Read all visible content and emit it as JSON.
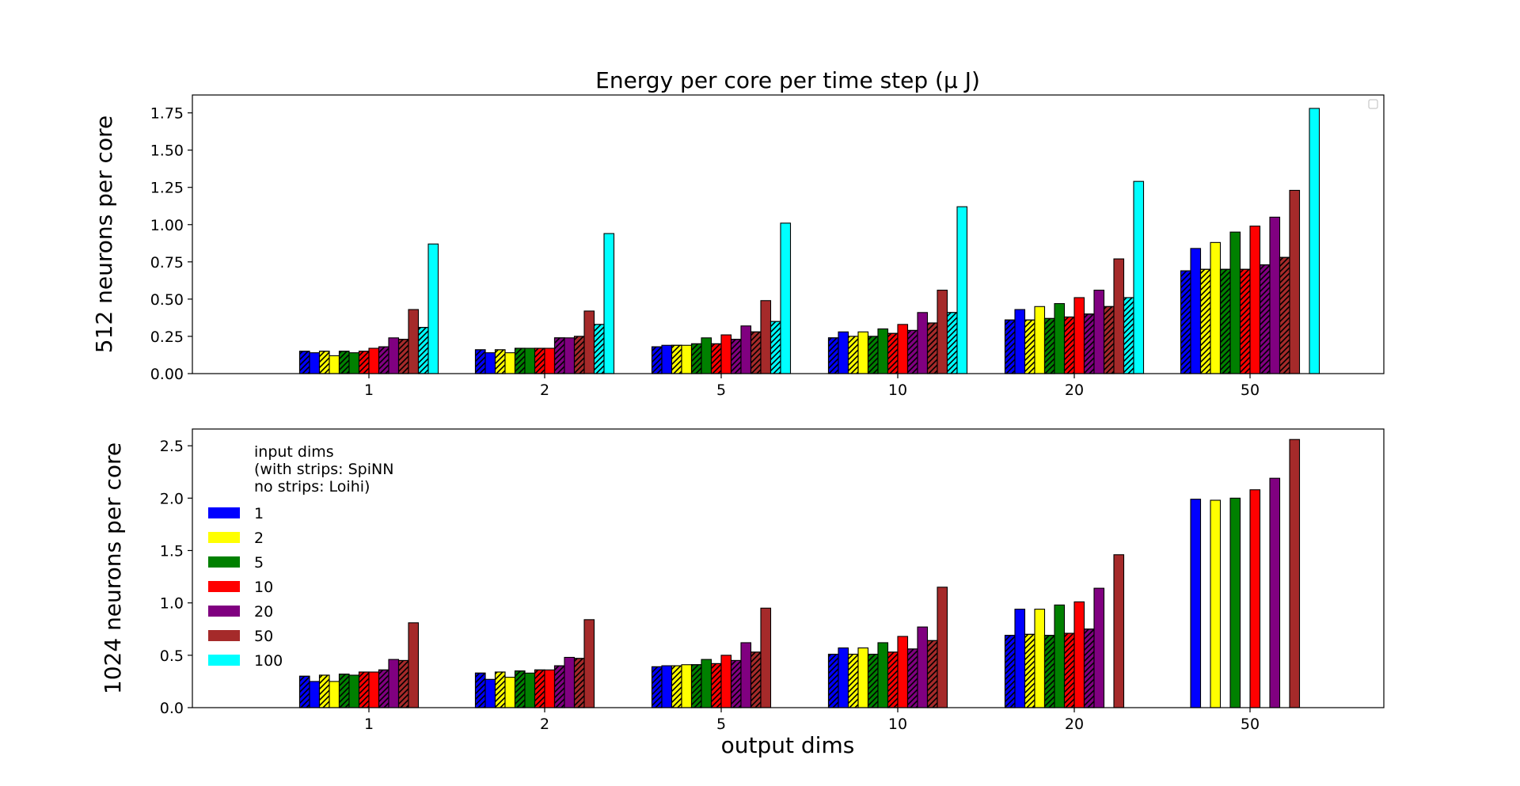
{
  "chart_data": {
    "type": "bar",
    "title": "Energy per core per time step (μ J)",
    "xlabel": "output dims",
    "categories": [
      "1",
      "2",
      "5",
      "10",
      "20",
      "50"
    ],
    "legend": {
      "title_lines": [
        "input dims",
        "(with strips: SpiNN",
        "no strips: Loihi)"
      ],
      "entries": [
        "1",
        "2",
        "5",
        "10",
        "20",
        "50",
        "100"
      ],
      "placement": "upper-left (bottom panel)"
    },
    "series_colors": {
      "1": "#0000ff",
      "2": "#ffff00",
      "5": "#008000",
      "10": "#ff0000",
      "20": "#800080",
      "50": "#a52a2a",
      "100": "#00ffff"
    },
    "panels": [
      {
        "ylabel": "512 neurons per core",
        "ylim": [
          0,
          1.87
        ],
        "yticks": [
          0.0,
          0.25,
          0.5,
          0.75,
          1.0,
          1.25,
          1.5,
          1.75
        ],
        "ytick_labels": [
          "0.00",
          "0.25",
          "0.50",
          "0.75",
          "1.00",
          "1.25",
          "1.50",
          "1.75"
        ],
        "series": [
          {
            "name": "1",
            "spinn": [
              0.15,
              0.16,
              0.18,
              0.24,
              0.36,
              0.69
            ],
            "loihi": [
              0.14,
              0.14,
              0.19,
              0.28,
              0.43,
              0.84
            ]
          },
          {
            "name": "2",
            "spinn": [
              0.15,
              0.16,
              0.19,
              0.25,
              0.36,
              0.7
            ],
            "loihi": [
              0.12,
              0.14,
              0.19,
              0.28,
              0.45,
              0.88
            ]
          },
          {
            "name": "5",
            "spinn": [
              0.15,
              0.17,
              0.2,
              0.25,
              0.37,
              0.7
            ],
            "loihi": [
              0.14,
              0.17,
              0.24,
              0.3,
              0.47,
              0.95
            ]
          },
          {
            "name": "10",
            "spinn": [
              0.15,
              0.17,
              0.2,
              0.27,
              0.38,
              0.7
            ],
            "loihi": [
              0.17,
              0.17,
              0.26,
              0.33,
              0.51,
              0.99
            ]
          },
          {
            "name": "20",
            "spinn": [
              0.18,
              0.24,
              0.23,
              0.29,
              0.4,
              0.73
            ],
            "loihi": [
              0.24,
              0.24,
              0.32,
              0.41,
              0.56,
              1.05
            ]
          },
          {
            "name": "50",
            "spinn": [
              0.23,
              0.25,
              0.28,
              0.34,
              0.45,
              0.78
            ],
            "loihi": [
              0.43,
              0.42,
              0.49,
              0.56,
              0.77,
              1.23
            ]
          },
          {
            "name": "100",
            "spinn": [
              0.31,
              0.33,
              0.35,
              0.41,
              0.51,
              null
            ],
            "loihi": [
              0.87,
              0.94,
              1.01,
              1.12,
              1.29,
              1.78
            ]
          }
        ]
      },
      {
        "ylabel": "1024 neurons per core",
        "ylim": [
          0,
          2.66
        ],
        "yticks": [
          0.0,
          0.5,
          1.0,
          1.5,
          2.0,
          2.5
        ],
        "ytick_labels": [
          "0.0",
          "0.5",
          "1.0",
          "1.5",
          "2.0",
          "2.5"
        ],
        "series": [
          {
            "name": "1",
            "spinn": [
              0.3,
              0.33,
              0.39,
              0.51,
              0.69,
              null
            ],
            "loihi": [
              0.25,
              0.27,
              0.4,
              0.57,
              0.94,
              1.99
            ]
          },
          {
            "name": "2",
            "spinn": [
              0.31,
              0.34,
              0.4,
              0.51,
              0.7,
              null
            ],
            "loihi": [
              0.25,
              0.29,
              0.41,
              0.57,
              0.94,
              1.98
            ]
          },
          {
            "name": "5",
            "spinn": [
              0.32,
              0.35,
              0.41,
              0.51,
              0.69,
              null
            ],
            "loihi": [
              0.31,
              0.33,
              0.46,
              0.62,
              0.98,
              2.0
            ]
          },
          {
            "name": "10",
            "spinn": [
              0.34,
              0.36,
              0.42,
              0.53,
              0.71,
              null
            ],
            "loihi": [
              0.34,
              0.36,
              0.5,
              0.68,
              1.01,
              2.08
            ]
          },
          {
            "name": "20",
            "spinn": [
              0.36,
              0.4,
              0.45,
              0.56,
              0.75,
              null
            ],
            "loihi": [
              0.46,
              0.48,
              0.62,
              0.77,
              1.14,
              2.19
            ]
          },
          {
            "name": "50",
            "spinn": [
              0.45,
              0.47,
              0.53,
              0.64,
              null,
              null
            ],
            "loihi": [
              0.81,
              0.84,
              0.95,
              1.15,
              1.46,
              2.56
            ]
          },
          {
            "name": "100",
            "spinn": [
              null,
              null,
              null,
              null,
              null,
              null
            ],
            "loihi": [
              0.0,
              0.0,
              0.0,
              0.0,
              0.0,
              0.0
            ]
          }
        ]
      }
    ]
  }
}
